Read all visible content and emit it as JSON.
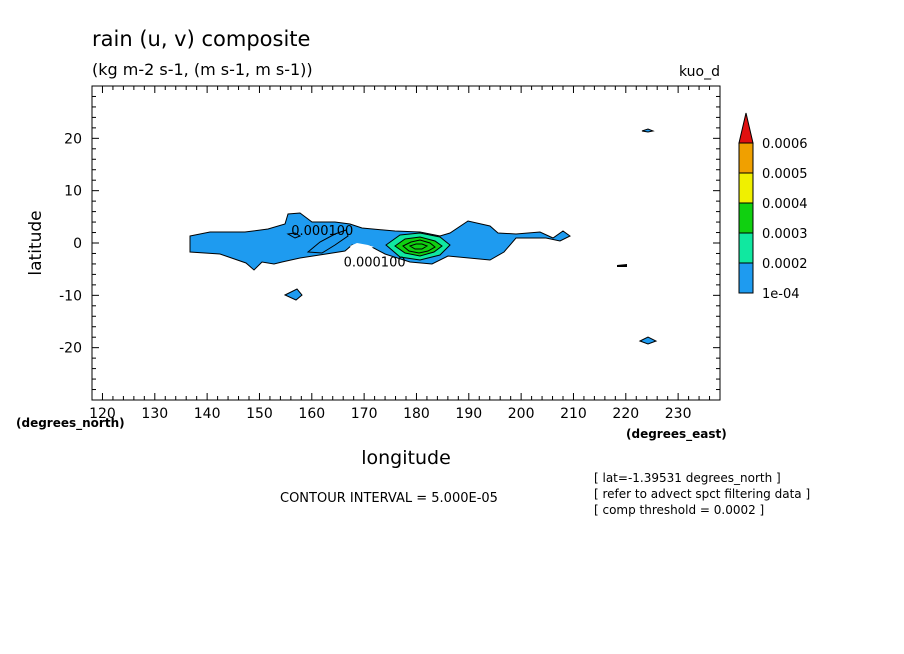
{
  "chart_data": {
    "type": "contour",
    "title": "rain (u, v) composite",
    "subtitle": "(kg m-2 s-1, (m s-1, m s-1))",
    "dataset_label": "kuo_d",
    "xlabel": "longitude",
    "ylabel": "latitude",
    "x_units": "(degrees_east)",
    "y_units": "(degrees_north)",
    "xlim": [
      118,
      238
    ],
    "ylim": [
      -30,
      30
    ],
    "x_ticks": [
      120,
      130,
      140,
      150,
      160,
      170,
      180,
      190,
      200,
      210,
      220,
      230
    ],
    "y_ticks": [
      -20,
      -10,
      0,
      10,
      20
    ],
    "contour_labels": [
      {
        "text": "0.000100",
        "lon": 162.0,
        "lat": 2.5
      },
      {
        "text": "0.000100",
        "lon": 172.0,
        "lat": -3.5
      }
    ],
    "colorbar": {
      "levels": [
        "1e-04",
        "0.0002",
        "0.0003",
        "0.0004",
        "0.0005",
        "0.0006"
      ],
      "colors": [
        "#1e9bf0",
        "#10e8a0",
        "#10d010",
        "#f0f000",
        "#f0a000",
        "#e01010"
      ]
    },
    "footer": {
      "contour_interval": "CONTOUR INTERVAL = 5.000E-05",
      "notes": [
        "[ lat=-1.39531 degrees_north ]",
        "[ refer to advect spct filtering data ]",
        "[ comp threshold = 0.0002 ]"
      ]
    },
    "grid": false
  }
}
